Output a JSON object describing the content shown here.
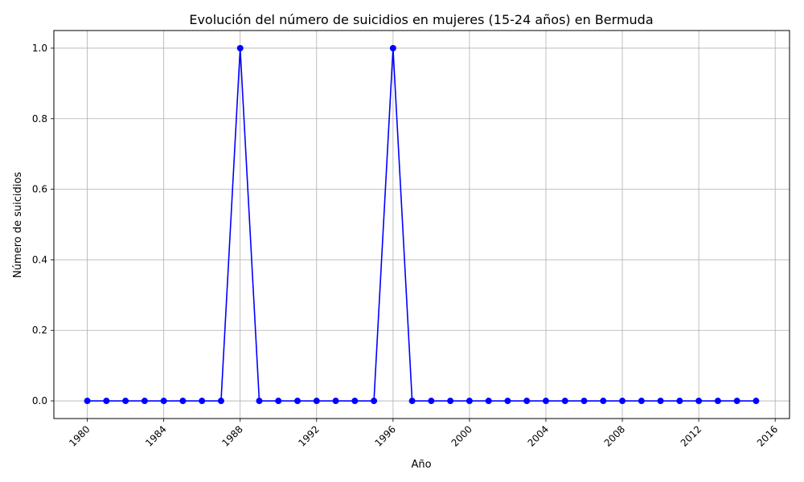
{
  "chart_data": {
    "type": "line",
    "title": "Evolución del número de suicidios en mujeres (15-24 años) en Bermuda",
    "xlabel": "Año",
    "ylabel": "Número de suicidios",
    "xlim": [
      1978.25,
      2016.75
    ],
    "ylim": [
      -0.05,
      1.05
    ],
    "xticks": [
      1980,
      1984,
      1988,
      1992,
      1996,
      2000,
      2004,
      2008,
      2012,
      2016
    ],
    "xtick_labels": [
      "1980",
      "1984",
      "1988",
      "1992",
      "1996",
      "2000",
      "2004",
      "2008",
      "2012",
      "2016"
    ],
    "yticks": [
      0,
      0.2,
      0.4,
      0.6,
      0.8,
      1.0
    ],
    "ytick_labels": [
      "0.0",
      "0.2",
      "0.4",
      "0.6",
      "0.8",
      "1.0"
    ],
    "grid": true,
    "line_color": "#0000ff",
    "grid_color": "#b0b0b0",
    "series": [
      {
        "x": [
          1980,
          1981,
          1982,
          1983,
          1984,
          1985,
          1986,
          1987,
          1988,
          1989,
          1990,
          1991,
          1992,
          1993,
          1994,
          1995,
          1996,
          1997,
          1998,
          1999,
          2000,
          2001,
          2002,
          2003,
          2004,
          2005,
          2006,
          2007,
          2008,
          2009,
          2010,
          2011,
          2012,
          2013,
          2014,
          2015
        ],
        "y": [
          0,
          0,
          0,
          0,
          0,
          0,
          0,
          0,
          1,
          0,
          0,
          0,
          0,
          0,
          0,
          0,
          1,
          0,
          0,
          0,
          0,
          0,
          0,
          0,
          0,
          0,
          0,
          0,
          0,
          0,
          0,
          0,
          0,
          0,
          0,
          0
        ]
      }
    ]
  }
}
